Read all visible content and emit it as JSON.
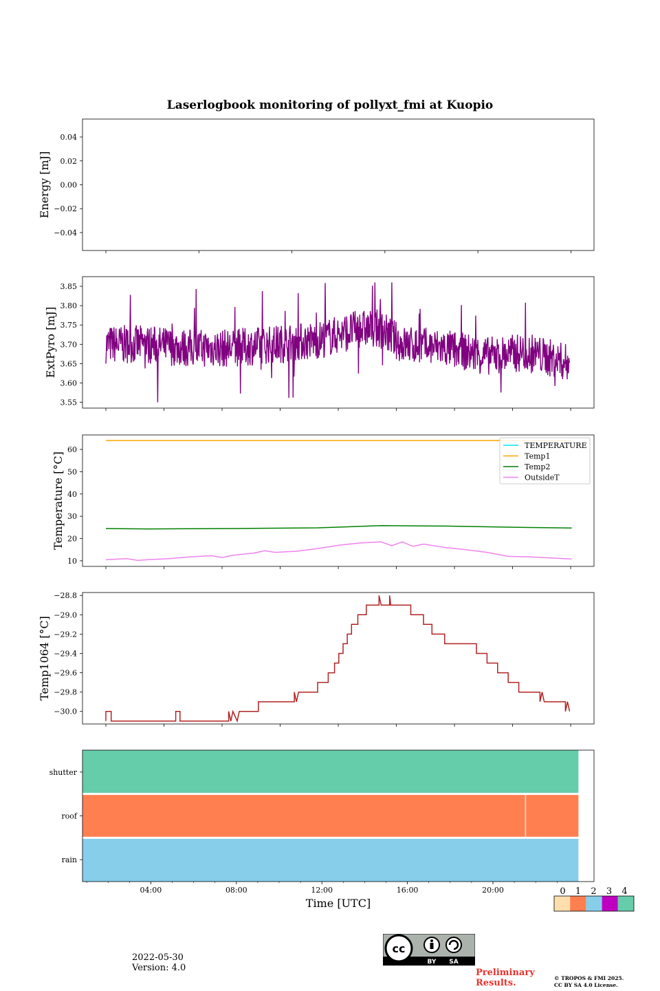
{
  "title": "Laserlogbook monitoring of pollyxt_fmi at Kuopio",
  "xlabel": "Time [UTC]",
  "xticks": [
    "04:00",
    "08:00",
    "12:00",
    "16:00",
    "20:00"
  ],
  "footer": {
    "date": "2022-05-30",
    "version": "Version: 4.0",
    "preliminary_line1": "Preliminary",
    "preliminary_line2": "Results.",
    "copyright_line1": "© TROPOS & FMI 2025.",
    "copyright_line2": "CC BY SA 4.0 License.",
    "cc_by": "BY",
    "cc_sa": "SA"
  },
  "colors": {
    "extpyro": "#800080",
    "temperature": "#00e5ee",
    "temp1": "#ffa500",
    "temp2": "#008000",
    "outsideT": "#ee82ee",
    "temp1064": "#b22222",
    "status0": "#ffdead",
    "status1": "#ff7f50",
    "status2": "#87ceeb",
    "status3": "#c000c0",
    "status4": "#66cdaa",
    "preliminary": "#e8322c"
  },
  "chart_data": [
    {
      "id": "energy",
      "type": "line",
      "ylabel": "Energy [mJ]",
      "ylim": [
        -0.055,
        0.055
      ],
      "yticks": [
        "0.04",
        "0.02",
        "0.00",
        "−0.02",
        "−0.04"
      ],
      "ytick_values": [
        0.04,
        0.02,
        0.0,
        -0.02,
        -0.04
      ],
      "series": []
    },
    {
      "id": "extpyro",
      "type": "line",
      "ylabel": "ExtPyro [mJ]",
      "ylim": [
        3.535,
        3.875
      ],
      "yticks": [
        "3.85",
        "3.80",
        "3.75",
        "3.70",
        "3.65",
        "3.60",
        "3.55"
      ],
      "ytick_values": [
        3.85,
        3.8,
        3.75,
        3.7,
        3.65,
        3.6,
        3.55
      ],
      "series": [
        {
          "name": "ExtPyro",
          "color_key": "extpyro",
          "x_range_hours": [
            0.1,
            21.9
          ],
          "baseline": [
            [
              0.1,
              3.7
            ],
            [
              2,
              3.7
            ],
            [
              4,
              3.69
            ],
            [
              6,
              3.69
            ],
            [
              8,
              3.7
            ],
            [
              10,
              3.71
            ],
            [
              12,
              3.74
            ],
            [
              13,
              3.74
            ],
            [
              14,
              3.7
            ],
            [
              16,
              3.69
            ],
            [
              18,
              3.67
            ],
            [
              20,
              3.68
            ],
            [
              21.9,
              3.65
            ]
          ],
          "noise_amplitude": 0.05,
          "min": 3.55,
          "max": 3.86
        }
      ]
    },
    {
      "id": "temperature",
      "type": "line",
      "ylabel": "Temperature [°C]",
      "ylim": [
        7.5,
        66.5
      ],
      "yticks": [
        "60",
        "50",
        "40",
        "30",
        "20",
        "10"
      ],
      "ytick_values": [
        60,
        50,
        40,
        30,
        20,
        10
      ],
      "legend_position": "top-right",
      "series": [
        {
          "name": "TEMPERATURE",
          "color_key": "temperature",
          "points": []
        },
        {
          "name": "Temp1",
          "color_key": "temp1",
          "points": [
            [
              0,
              64
            ],
            [
              22,
              64
            ]
          ]
        },
        {
          "name": "Temp2",
          "color_key": "temp2",
          "points": [
            [
              0,
              24.5
            ],
            [
              2,
              24.3
            ],
            [
              6,
              24.5
            ],
            [
              10,
              24.8
            ],
            [
              13,
              25.8
            ],
            [
              16,
              25.6
            ],
            [
              19,
              25.1
            ],
            [
              22,
              24.7
            ]
          ]
        },
        {
          "name": "OutsideT",
          "color_key": "outsideT",
          "points": [
            [
              0,
              10.5
            ],
            [
              1,
              11
            ],
            [
              1.5,
              10.2
            ],
            [
              2,
              10.5
            ],
            [
              3,
              11
            ],
            [
              4,
              11.8
            ],
            [
              5,
              12.3
            ],
            [
              5.5,
              11.5
            ],
            [
              6,
              12.5
            ],
            [
              7,
              13.5
            ],
            [
              7.5,
              14.5
            ],
            [
              8,
              13.8
            ],
            [
              9,
              14.3
            ],
            [
              10,
              15.5
            ],
            [
              11,
              17
            ],
            [
              12,
              18
            ],
            [
              13,
              18.5
            ],
            [
              13.5,
              16.8
            ],
            [
              14,
              18.5
            ],
            [
              14.5,
              16.5
            ],
            [
              15,
              17.5
            ],
            [
              16,
              16
            ],
            [
              17,
              15
            ],
            [
              18,
              13.8
            ],
            [
              19,
              12
            ],
            [
              20,
              11.8
            ],
            [
              21,
              11.3
            ],
            [
              22,
              10.8
            ]
          ]
        }
      ]
    },
    {
      "id": "temp1064",
      "type": "line",
      "ylabel": "Temp1064 [°C]",
      "ylim": [
        -30.13,
        -28.77
      ],
      "yticks": [
        "−28.8",
        "−29.0",
        "−29.2",
        "−29.4",
        "−29.6",
        "−29.8",
        "−30.0"
      ],
      "ytick_values": [
        -28.8,
        -29.0,
        -29.2,
        -29.4,
        -29.6,
        -29.8,
        -30.0
      ],
      "series": [
        {
          "name": "Temp1064",
          "color_key": "temp1064",
          "points": [
            [
              0,
              -30.1
            ],
            [
              0,
              -30.0
            ],
            [
              0.25,
              -30.0
            ],
            [
              0.25,
              -30.1
            ],
            [
              3.3,
              -30.1
            ],
            [
              3.3,
              -30.0
            ],
            [
              3.5,
              -30.0
            ],
            [
              3.5,
              -30.1
            ],
            [
              5.8,
              -30.1
            ],
            [
              5.8,
              -30.0
            ],
            [
              5.9,
              -30.1
            ],
            [
              6,
              -30.0
            ],
            [
              6.2,
              -30.1
            ],
            [
              6.3,
              -30.0
            ],
            [
              7.2,
              -30.0
            ],
            [
              7.2,
              -29.9
            ],
            [
              8.9,
              -29.9
            ],
            [
              8.9,
              -29.8
            ],
            [
              9.0,
              -29.9
            ],
            [
              9.1,
              -29.8
            ],
            [
              10.0,
              -29.8
            ],
            [
              10.0,
              -29.7
            ],
            [
              10.5,
              -29.7
            ],
            [
              10.5,
              -29.6
            ],
            [
              10.8,
              -29.6
            ],
            [
              10.8,
              -29.5
            ],
            [
              11.0,
              -29.5
            ],
            [
              11.0,
              -29.4
            ],
            [
              11.2,
              -29.4
            ],
            [
              11.2,
              -29.3
            ],
            [
              11.4,
              -29.3
            ],
            [
              11.4,
              -29.2
            ],
            [
              11.6,
              -29.2
            ],
            [
              11.6,
              -29.1
            ],
            [
              11.9,
              -29.1
            ],
            [
              11.9,
              -29.0
            ],
            [
              12.3,
              -29.0
            ],
            [
              12.3,
              -28.9
            ],
            [
              12.9,
              -28.9
            ],
            [
              12.9,
              -28.8
            ],
            [
              13.0,
              -28.9
            ],
            [
              13.4,
              -28.9
            ],
            [
              13.4,
              -28.8
            ],
            [
              13.45,
              -28.9
            ],
            [
              14.4,
              -28.9
            ],
            [
              14.4,
              -29.0
            ],
            [
              15.0,
              -29.0
            ],
            [
              15.0,
              -29.1
            ],
            [
              15.4,
              -29.1
            ],
            [
              15.4,
              -29.2
            ],
            [
              16.0,
              -29.2
            ],
            [
              16.0,
              -29.3
            ],
            [
              17.5,
              -29.3
            ],
            [
              17.5,
              -29.4
            ],
            [
              18.0,
              -29.4
            ],
            [
              18.0,
              -29.5
            ],
            [
              18.5,
              -29.5
            ],
            [
              18.5,
              -29.6
            ],
            [
              19.0,
              -29.6
            ],
            [
              19.0,
              -29.7
            ],
            [
              19.5,
              -29.7
            ],
            [
              19.5,
              -29.8
            ],
            [
              20.5,
              -29.8
            ],
            [
              20.5,
              -29.9
            ],
            [
              20.6,
              -29.8
            ],
            [
              20.7,
              -29.9
            ],
            [
              21.7,
              -29.9
            ],
            [
              21.7,
              -30.0
            ],
            [
              21.8,
              -29.9
            ],
            [
              21.9,
              -30.0
            ]
          ]
        }
      ]
    },
    {
      "id": "status",
      "type": "heatmap",
      "rows": [
        "shutter",
        "roof",
        "rain"
      ],
      "row_values": [
        [
          {
            "from": 0,
            "to": 24,
            "value": 4
          }
        ],
        [
          {
            "from": 0,
            "to": 21.5,
            "value": 1
          },
          {
            "from": 21.5,
            "to": 21.55,
            "value": 0
          },
          {
            "from": 21.55,
            "to": 24,
            "value": 1
          }
        ],
        [
          {
            "from": 0,
            "to": 24,
            "value": 2
          }
        ]
      ],
      "colorbar_ticks": [
        "0",
        "1",
        "2",
        "3",
        "4"
      ],
      "colorbar_color_keys": [
        "status0",
        "status1",
        "status2",
        "status3",
        "status4"
      ]
    }
  ]
}
